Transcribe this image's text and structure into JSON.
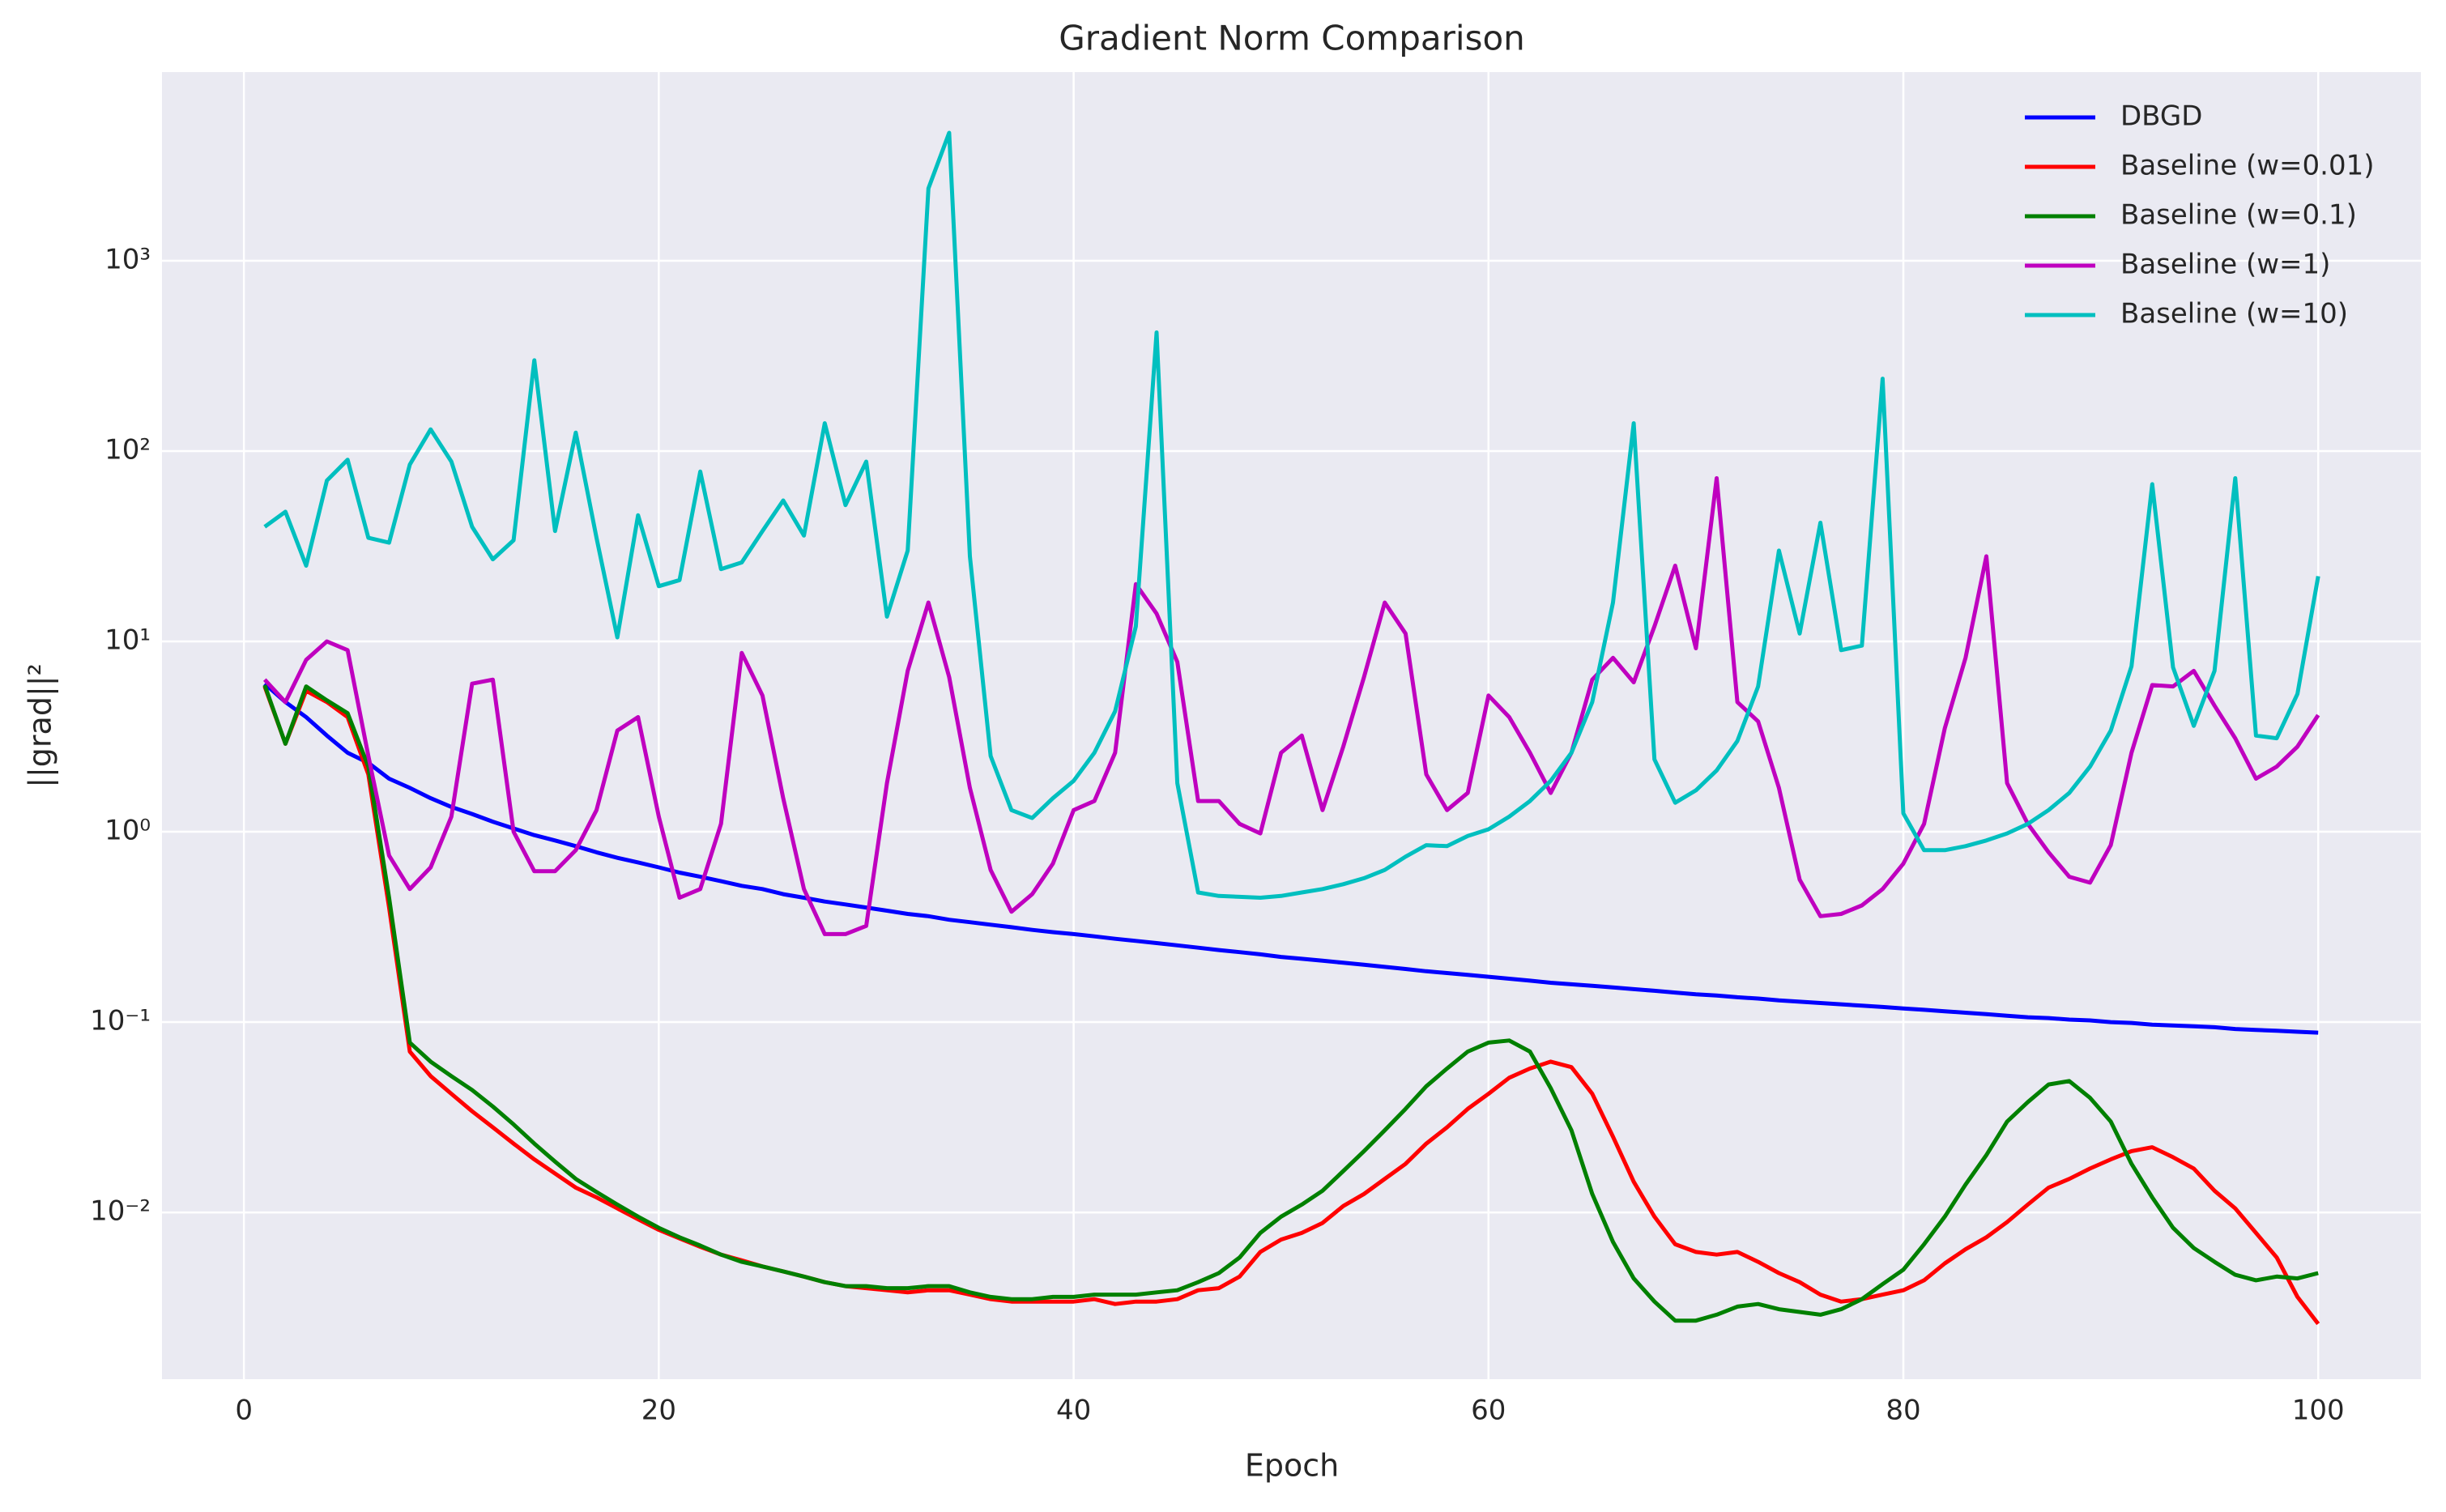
{
  "chart_data": {
    "type": "line",
    "title": "Gradient Norm Comparison",
    "x_label": "Epoch",
    "y_label": "||grad||²",
    "y_scale": "log",
    "grid": true,
    "legend_position": "upper right",
    "xlim": [
      -3.95,
      104.95
    ],
    "xticks": [
      0,
      20,
      40,
      60,
      80,
      100
    ],
    "ylim": [
      0.00133,
      9800
    ],
    "yticks": [
      {
        "value": 0.01,
        "label": "10⁻²"
      },
      {
        "value": 0.1,
        "label": "10⁻¹"
      },
      {
        "value": 1,
        "label": "10⁰"
      },
      {
        "value": 10,
        "label": "10¹"
      },
      {
        "value": 100,
        "label": "10²"
      },
      {
        "value": 1000,
        "label": "10³"
      }
    ],
    "x": [
      1,
      2,
      3,
      4,
      5,
      6,
      7,
      8,
      9,
      10,
      11,
      12,
      13,
      14,
      15,
      16,
      17,
      18,
      19,
      20,
      21,
      22,
      23,
      24,
      25,
      26,
      27,
      28,
      29,
      30,
      31,
      32,
      33,
      34,
      35,
      36,
      37,
      38,
      39,
      40,
      41,
      42,
      43,
      44,
      45,
      46,
      47,
      48,
      49,
      50,
      51,
      52,
      53,
      54,
      55,
      56,
      57,
      58,
      59,
      60,
      61,
      62,
      63,
      64,
      65,
      66,
      67,
      68,
      69,
      70,
      71,
      72,
      73,
      74,
      75,
      76,
      77,
      78,
      79,
      80,
      81,
      82,
      83,
      84,
      85,
      86,
      87,
      88,
      89,
      90,
      91,
      92,
      93,
      94,
      95,
      96,
      97,
      98,
      99,
      100
    ],
    "series": [
      {
        "name": "DBGD",
        "color": "#0000ff",
        "values": [
          6.0,
          4.8,
          4.0,
          3.2,
          2.6,
          2.3,
          1.9,
          1.7,
          1.5,
          1.35,
          1.24,
          1.13,
          1.04,
          0.96,
          0.9,
          0.84,
          0.78,
          0.73,
          0.69,
          0.65,
          0.61,
          0.58,
          0.55,
          0.52,
          0.5,
          0.47,
          0.45,
          0.43,
          0.415,
          0.4,
          0.385,
          0.37,
          0.36,
          0.345,
          0.335,
          0.325,
          0.315,
          0.305,
          0.297,
          0.29,
          0.282,
          0.274,
          0.267,
          0.26,
          0.253,
          0.246,
          0.239,
          0.233,
          0.227,
          0.22,
          0.215,
          0.21,
          0.205,
          0.2,
          0.195,
          0.19,
          0.185,
          0.181,
          0.177,
          0.173,
          0.169,
          0.165,
          0.161,
          0.158,
          0.155,
          0.152,
          0.149,
          0.146,
          0.143,
          0.14,
          0.138,
          0.135,
          0.133,
          0.13,
          0.128,
          0.126,
          0.124,
          0.122,
          0.12,
          0.118,
          0.116,
          0.114,
          0.112,
          0.11,
          0.108,
          0.106,
          0.105,
          0.103,
          0.102,
          0.1,
          0.099,
          0.097,
          0.096,
          0.095,
          0.094,
          0.092,
          0.091,
          0.09,
          0.089,
          0.088
        ]
      },
      {
        "name": "Baseline (w=0.01)",
        "color": "#ff0000",
        "values": [
          5.8,
          2.9,
          5.5,
          4.8,
          4.0,
          2.0,
          0.4,
          0.07,
          0.052,
          0.042,
          0.034,
          0.028,
          0.023,
          0.019,
          0.016,
          0.0135,
          0.012,
          0.0105,
          0.0092,
          0.0081,
          0.0073,
          0.0066,
          0.006,
          0.0056,
          0.0052,
          0.0049,
          0.0046,
          0.0043,
          0.0041,
          0.004,
          0.0039,
          0.0038,
          0.0039,
          0.0039,
          0.0037,
          0.0035,
          0.0034,
          0.0034,
          0.0034,
          0.0034,
          0.0035,
          0.0033,
          0.0034,
          0.0034,
          0.0035,
          0.0039,
          0.004,
          0.0046,
          0.0062,
          0.0072,
          0.0078,
          0.0088,
          0.0108,
          0.0125,
          0.015,
          0.018,
          0.023,
          0.028,
          0.035,
          0.042,
          0.051,
          0.057,
          0.062,
          0.058,
          0.042,
          0.025,
          0.0145,
          0.0095,
          0.0068,
          0.0062,
          0.006,
          0.0062,
          0.0055,
          0.0048,
          0.0043,
          0.0037,
          0.0034,
          0.0035,
          0.0037,
          0.0039,
          0.0044,
          0.0054,
          0.0064,
          0.0074,
          0.0089,
          0.011,
          0.0135,
          0.015,
          0.017,
          0.019,
          0.021,
          0.022,
          0.0195,
          0.017,
          0.013,
          0.0105,
          0.0078,
          0.0058,
          0.0036,
          0.0026
        ]
      },
      {
        "name": "Baseline (w=0.1)",
        "color": "#008000",
        "values": [
          5.9,
          2.9,
          5.8,
          4.9,
          4.2,
          2.2,
          0.45,
          0.078,
          0.062,
          0.052,
          0.044,
          0.036,
          0.029,
          0.023,
          0.0185,
          0.015,
          0.0128,
          0.011,
          0.0095,
          0.0083,
          0.0074,
          0.0067,
          0.006,
          0.0055,
          0.0052,
          0.0049,
          0.0046,
          0.0043,
          0.0041,
          0.0041,
          0.004,
          0.004,
          0.0041,
          0.0041,
          0.0038,
          0.0036,
          0.0035,
          0.0035,
          0.0036,
          0.0036,
          0.0037,
          0.0037,
          0.0037,
          0.0038,
          0.0039,
          0.0043,
          0.0048,
          0.0058,
          0.0078,
          0.0095,
          0.011,
          0.013,
          0.0165,
          0.021,
          0.027,
          0.035,
          0.046,
          0.057,
          0.07,
          0.078,
          0.08,
          0.07,
          0.045,
          0.027,
          0.0125,
          0.007,
          0.0045,
          0.0034,
          0.0027,
          0.0027,
          0.0029,
          0.0032,
          0.0033,
          0.0031,
          0.003,
          0.0029,
          0.0031,
          0.0035,
          0.0042,
          0.005,
          0.0068,
          0.0095,
          0.014,
          0.02,
          0.03,
          0.038,
          0.047,
          0.049,
          0.04,
          0.03,
          0.018,
          0.012,
          0.0083,
          0.0065,
          0.0055,
          0.0047,
          0.0044,
          0.0046,
          0.0045,
          0.0048
        ]
      },
      {
        "name": "Baseline (w=1)",
        "color": "#bf00bf",
        "values": [
          6.3,
          4.8,
          8.0,
          10,
          9.0,
          2.5,
          0.75,
          0.5,
          0.65,
          1.2,
          6.0,
          6.3,
          1.0,
          0.62,
          0.62,
          0.8,
          1.3,
          3.4,
          4.0,
          1.2,
          0.45,
          0.5,
          1.1,
          8.7,
          5.2,
          1.5,
          0.5,
          0.29,
          0.29,
          0.32,
          1.8,
          7.0,
          16,
          6.5,
          1.7,
          0.63,
          0.38,
          0.47,
          0.68,
          1.3,
          1.45,
          2.6,
          20,
          14,
          7.8,
          1.45,
          1.45,
          1.1,
          0.98,
          2.6,
          3.2,
          1.3,
          2.8,
          6.5,
          16,
          11,
          2.0,
          1.3,
          1.6,
          5.2,
          4.0,
          2.6,
          1.6,
          2.6,
          6.3,
          8.2,
          6.1,
          12,
          25,
          9.2,
          72,
          4.8,
          3.8,
          1.7,
          0.56,
          0.36,
          0.37,
          0.41,
          0.5,
          0.68,
          1.1,
          3.5,
          8.2,
          28,
          1.8,
          1.1,
          0.78,
          0.58,
          0.54,
          0.85,
          2.6,
          5.9,
          5.8,
          7.0,
          4.6,
          3.1,
          1.9,
          2.2,
          2.8,
          4.1
        ]
      },
      {
        "name": "Baseline (w=10)",
        "color": "#00bfbf",
        "values": [
          40,
          48,
          25,
          70,
          90,
          35,
          33,
          85,
          130,
          88,
          40,
          27,
          34,
          300,
          38,
          125,
          35,
          10.5,
          46,
          19.5,
          21,
          78,
          24,
          26,
          38,
          55,
          36,
          140,
          52,
          88,
          13.5,
          30,
          2400,
          4700,
          28,
          2.5,
          1.3,
          1.18,
          1.5,
          1.85,
          2.6,
          4.3,
          12,
          420,
          1.8,
          0.48,
          0.46,
          0.455,
          0.45,
          0.46,
          0.48,
          0.5,
          0.53,
          0.57,
          0.63,
          0.74,
          0.85,
          0.84,
          0.95,
          1.03,
          1.2,
          1.45,
          1.85,
          2.6,
          4.8,
          16,
          140,
          2.4,
          1.42,
          1.65,
          2.1,
          3.0,
          5.8,
          30,
          11,
          42,
          9,
          9.5,
          240,
          1.25,
          0.8,
          0.8,
          0.84,
          0.9,
          0.98,
          1.1,
          1.3,
          1.6,
          2.2,
          3.4,
          7.4,
          67,
          7.3,
          3.6,
          7.0,
          72,
          3.2,
          3.1,
          5.3,
          22
        ]
      }
    ]
  }
}
